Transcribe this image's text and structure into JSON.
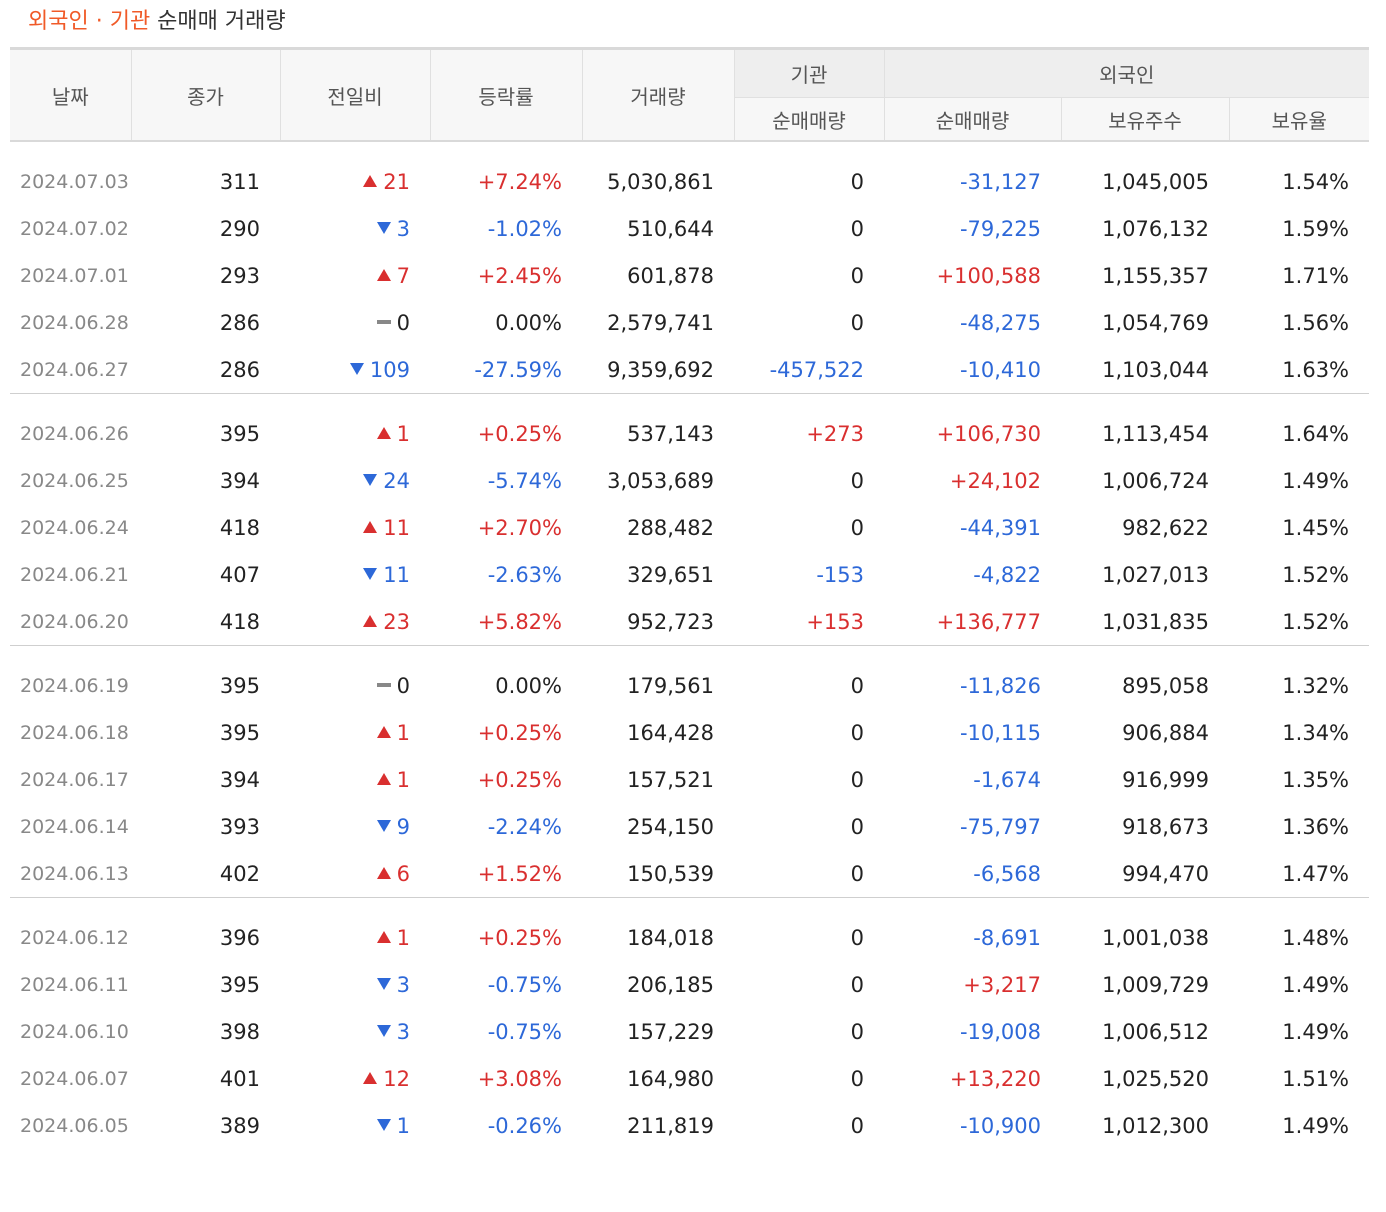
{
  "title": {
    "accent": "외국인 · 기관",
    "rest": " 순매매 거래량"
  },
  "colors": {
    "up": "#d92f2f",
    "down": "#2d68d8",
    "accent": "#f05a28"
  },
  "headers": {
    "date": "날짜",
    "close": "종가",
    "change": "전일비",
    "rate": "등락률",
    "volume": "거래량",
    "inst_group": "기관",
    "inst_net": "순매매량",
    "foreign_group": "외국인",
    "foreign_net": "순매매량",
    "foreign_shares": "보유주수",
    "foreign_ratio": "보유율"
  },
  "groups": [
    [
      {
        "date": "2024.07.03",
        "close": "311",
        "dir": "up",
        "change": "21",
        "rate": "+7.24%",
        "volume": "5,030,861",
        "inst": "0",
        "foreign": "-31,127",
        "shares": "1,045,005",
        "ratio": "1.54%"
      },
      {
        "date": "2024.07.02",
        "close": "290",
        "dir": "down",
        "change": "3",
        "rate": "-1.02%",
        "volume": "510,644",
        "inst": "0",
        "foreign": "-79,225",
        "shares": "1,076,132",
        "ratio": "1.59%"
      },
      {
        "date": "2024.07.01",
        "close": "293",
        "dir": "up",
        "change": "7",
        "rate": "+2.45%",
        "volume": "601,878",
        "inst": "0",
        "foreign": "+100,588",
        "shares": "1,155,357",
        "ratio": "1.71%"
      },
      {
        "date": "2024.06.28",
        "close": "286",
        "dir": "flat",
        "change": "0",
        "rate": "0.00%",
        "volume": "2,579,741",
        "inst": "0",
        "foreign": "-48,275",
        "shares": "1,054,769",
        "ratio": "1.56%"
      },
      {
        "date": "2024.06.27",
        "close": "286",
        "dir": "down",
        "change": "109",
        "rate": "-27.59%",
        "volume": "9,359,692",
        "inst": "-457,522",
        "foreign": "-10,410",
        "shares": "1,103,044",
        "ratio": "1.63%"
      }
    ],
    [
      {
        "date": "2024.06.26",
        "close": "395",
        "dir": "up",
        "change": "1",
        "rate": "+0.25%",
        "volume": "537,143",
        "inst": "+273",
        "foreign": "+106,730",
        "shares": "1,113,454",
        "ratio": "1.64%"
      },
      {
        "date": "2024.06.25",
        "close": "394",
        "dir": "down",
        "change": "24",
        "rate": "-5.74%",
        "volume": "3,053,689",
        "inst": "0",
        "foreign": "+24,102",
        "shares": "1,006,724",
        "ratio": "1.49%"
      },
      {
        "date": "2024.06.24",
        "close": "418",
        "dir": "up",
        "change": "11",
        "rate": "+2.70%",
        "volume": "288,482",
        "inst": "0",
        "foreign": "-44,391",
        "shares": "982,622",
        "ratio": "1.45%"
      },
      {
        "date": "2024.06.21",
        "close": "407",
        "dir": "down",
        "change": "11",
        "rate": "-2.63%",
        "volume": "329,651",
        "inst": "-153",
        "foreign": "-4,822",
        "shares": "1,027,013",
        "ratio": "1.52%"
      },
      {
        "date": "2024.06.20",
        "close": "418",
        "dir": "up",
        "change": "23",
        "rate": "+5.82%",
        "volume": "952,723",
        "inst": "+153",
        "foreign": "+136,777",
        "shares": "1,031,835",
        "ratio": "1.52%"
      }
    ],
    [
      {
        "date": "2024.06.19",
        "close": "395",
        "dir": "flat",
        "change": "0",
        "rate": "0.00%",
        "volume": "179,561",
        "inst": "0",
        "foreign": "-11,826",
        "shares": "895,058",
        "ratio": "1.32%"
      },
      {
        "date": "2024.06.18",
        "close": "395",
        "dir": "up",
        "change": "1",
        "rate": "+0.25%",
        "volume": "164,428",
        "inst": "0",
        "foreign": "-10,115",
        "shares": "906,884",
        "ratio": "1.34%"
      },
      {
        "date": "2024.06.17",
        "close": "394",
        "dir": "up",
        "change": "1",
        "rate": "+0.25%",
        "volume": "157,521",
        "inst": "0",
        "foreign": "-1,674",
        "shares": "916,999",
        "ratio": "1.35%"
      },
      {
        "date": "2024.06.14",
        "close": "393",
        "dir": "down",
        "change": "9",
        "rate": "-2.24%",
        "volume": "254,150",
        "inst": "0",
        "foreign": "-75,797",
        "shares": "918,673",
        "ratio": "1.36%"
      },
      {
        "date": "2024.06.13",
        "close": "402",
        "dir": "up",
        "change": "6",
        "rate": "+1.52%",
        "volume": "150,539",
        "inst": "0",
        "foreign": "-6,568",
        "shares": "994,470",
        "ratio": "1.47%"
      }
    ],
    [
      {
        "date": "2024.06.12",
        "close": "396",
        "dir": "up",
        "change": "1",
        "rate": "+0.25%",
        "volume": "184,018",
        "inst": "0",
        "foreign": "-8,691",
        "shares": "1,001,038",
        "ratio": "1.48%"
      },
      {
        "date": "2024.06.11",
        "close": "395",
        "dir": "down",
        "change": "3",
        "rate": "-0.75%",
        "volume": "206,185",
        "inst": "0",
        "foreign": "+3,217",
        "shares": "1,009,729",
        "ratio": "1.49%"
      },
      {
        "date": "2024.06.10",
        "close": "398",
        "dir": "down",
        "change": "3",
        "rate": "-0.75%",
        "volume": "157,229",
        "inst": "0",
        "foreign": "-19,008",
        "shares": "1,006,512",
        "ratio": "1.49%"
      },
      {
        "date": "2024.06.07",
        "close": "401",
        "dir": "up",
        "change": "12",
        "rate": "+3.08%",
        "volume": "164,980",
        "inst": "0",
        "foreign": "+13,220",
        "shares": "1,025,520",
        "ratio": "1.51%"
      },
      {
        "date": "2024.06.05",
        "close": "389",
        "dir": "down",
        "change": "1",
        "rate": "-0.26%",
        "volume": "211,819",
        "inst": "0",
        "foreign": "-10,900",
        "shares": "1,012,300",
        "ratio": "1.49%"
      }
    ]
  ]
}
